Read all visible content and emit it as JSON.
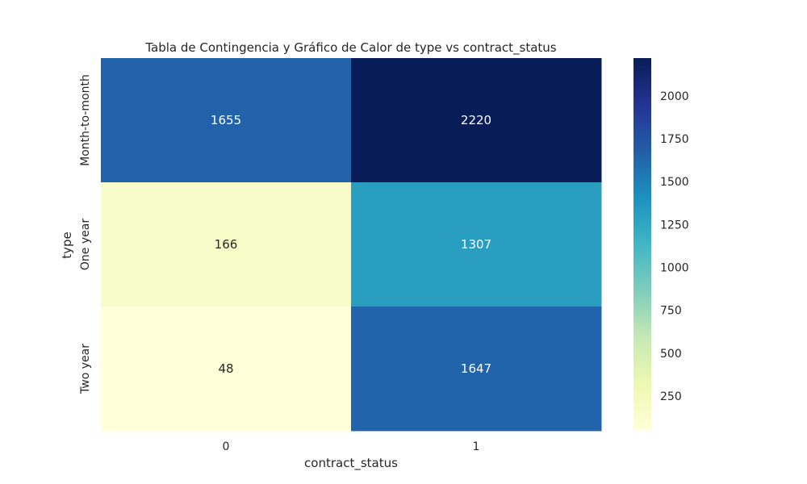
{
  "chart_data": {
    "type": "heatmap",
    "title": "Tabla de Contingencia y Gráfico de Calor de type vs contract_status",
    "xlabel": "contract_status",
    "ylabel": "type",
    "x_categories": [
      "0",
      "1"
    ],
    "y_categories": [
      "Month-to-month",
      "One year",
      "Two year"
    ],
    "values": [
      [
        1655,
        2220
      ],
      [
        166,
        1307
      ],
      [
        48,
        1647
      ]
    ],
    "colormap": "YlGnBu",
    "color_range": [
      48,
      2220
    ],
    "colorbar_ticks": [
      "250",
      "500",
      "750",
      "1000",
      "1250",
      "1500",
      "1750",
      "2000"
    ]
  }
}
